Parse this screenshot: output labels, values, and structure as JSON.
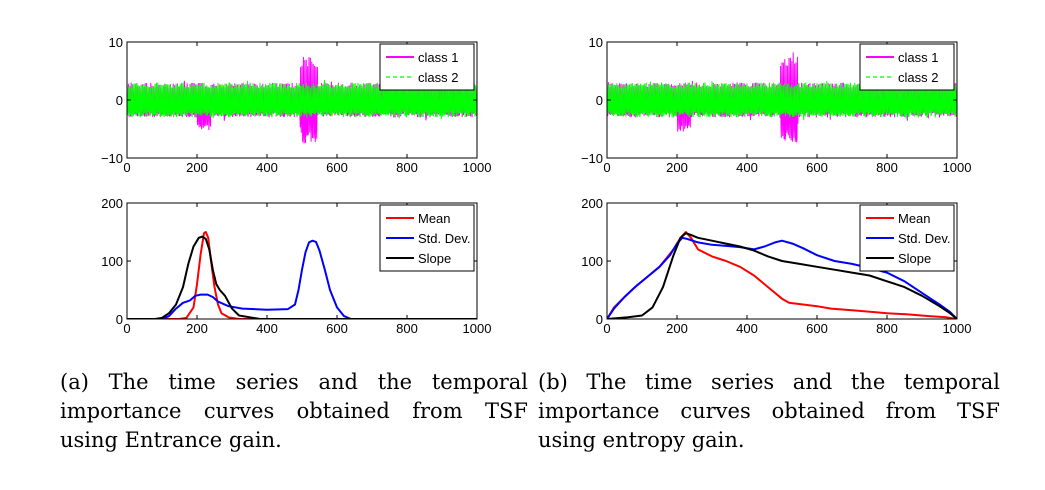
{
  "colors": {
    "class1": "#ff00ff",
    "class2": "#00ff00",
    "mean": "#ff0000",
    "std": "#0000ff",
    "slope": "#000000"
  },
  "chart_data": [
    {
      "id": "a-top",
      "type": "line",
      "xlim": [
        0,
        1000
      ],
      "ylim": [
        -10,
        10
      ],
      "xticks": [
        "0",
        "200",
        "400",
        "600",
        "800",
        "1000"
      ],
      "yticks": [
        "−10",
        "0",
        "10"
      ],
      "legend_position": "top-right",
      "series": [
        {
          "name": "class 1",
          "style": "solid",
          "color": "#ff00ff",
          "envelope": {
            "base_amplitude": 3,
            "bursts": [
              {
                "x": [
                  200,
                  240
                ],
                "amplitude": 5.5,
                "sign": "negative"
              },
              {
                "x": [
                  495,
                  545
                ],
                "amplitude": 7.5,
                "sign": "both"
              }
            ]
          }
        },
        {
          "name": "class 2",
          "style": "dashed",
          "color": "#00ff00",
          "envelope": {
            "base_amplitude": 3
          }
        }
      ]
    },
    {
      "id": "a-bottom",
      "type": "line",
      "xlim": [
        0,
        1000
      ],
      "ylim": [
        0,
        200
      ],
      "xticks": [
        "0",
        "200",
        "400",
        "600",
        "800",
        "1000"
      ],
      "yticks": [
        "0",
        "100",
        "200"
      ],
      "legend_position": "top-right",
      "series": [
        {
          "name": "Mean",
          "color": "#ff0000",
          "points": [
            [
              0,
              0
            ],
            [
              150,
              0
            ],
            [
              170,
              2
            ],
            [
              190,
              20
            ],
            [
              200,
              60
            ],
            [
              210,
              110
            ],
            [
              220,
              148
            ],
            [
              225,
              150
            ],
            [
              232,
              140
            ],
            [
              240,
              100
            ],
            [
              250,
              55
            ],
            [
              260,
              25
            ],
            [
              270,
              10
            ],
            [
              290,
              3
            ],
            [
              320,
              0
            ],
            [
              1000,
              0
            ]
          ]
        },
        {
          "name": "Std. Dev.",
          "color": "#0000ff",
          "points": [
            [
              0,
              0
            ],
            [
              100,
              0
            ],
            [
              120,
              5
            ],
            [
              140,
              18
            ],
            [
              160,
              28
            ],
            [
              180,
              32
            ],
            [
              195,
              40
            ],
            [
              210,
              42
            ],
            [
              230,
              42
            ],
            [
              245,
              38
            ],
            [
              260,
              30
            ],
            [
              290,
              22
            ],
            [
              330,
              18
            ],
            [
              400,
              16
            ],
            [
              460,
              17
            ],
            [
              480,
              25
            ],
            [
              490,
              50
            ],
            [
              500,
              85
            ],
            [
              510,
              115
            ],
            [
              520,
              132
            ],
            [
              530,
              135
            ],
            [
              540,
              133
            ],
            [
              550,
              118
            ],
            [
              565,
              85
            ],
            [
              580,
              50
            ],
            [
              600,
              20
            ],
            [
              620,
              5
            ],
            [
              640,
              0
            ],
            [
              1000,
              0
            ]
          ]
        },
        {
          "name": "Slope",
          "color": "#000000",
          "points": [
            [
              0,
              0
            ],
            [
              80,
              0
            ],
            [
              100,
              2
            ],
            [
              120,
              10
            ],
            [
              140,
              25
            ],
            [
              160,
              55
            ],
            [
              175,
              95
            ],
            [
              190,
              125
            ],
            [
              205,
              140
            ],
            [
              215,
              142
            ],
            [
              225,
              138
            ],
            [
              235,
              120
            ],
            [
              245,
              85
            ],
            [
              255,
              60
            ],
            [
              265,
              50
            ],
            [
              280,
              40
            ],
            [
              300,
              18
            ],
            [
              320,
              6
            ],
            [
              360,
              2
            ],
            [
              380,
              0
            ],
            [
              1000,
              0
            ]
          ]
        }
      ]
    },
    {
      "id": "b-top",
      "type": "line",
      "xlim": [
        0,
        1000
      ],
      "ylim": [
        -10,
        10
      ],
      "xticks": [
        "0",
        "200",
        "400",
        "600",
        "800",
        "1000"
      ],
      "yticks": [
        "−10",
        "0",
        "10"
      ],
      "legend_position": "top-right",
      "series": [
        {
          "name": "class 1",
          "style": "solid",
          "color": "#ff00ff",
          "envelope": {
            "base_amplitude": 3,
            "bursts": [
              {
                "x": [
                  200,
                  240
                ],
                "amplitude": 5.5,
                "sign": "negative"
              },
              {
                "x": [
                  495,
                  545
                ],
                "amplitude": 7.5,
                "sign": "both"
              }
            ]
          }
        },
        {
          "name": "class 2",
          "style": "dashed",
          "color": "#00ff00",
          "envelope": {
            "base_amplitude": 3
          }
        }
      ]
    },
    {
      "id": "b-bottom",
      "type": "line",
      "xlim": [
        0,
        1000
      ],
      "ylim": [
        0,
        200
      ],
      "xticks": [
        "0",
        "200",
        "400",
        "600",
        "800",
        "1000"
      ],
      "yticks": [
        "0",
        "100",
        "200"
      ],
      "legend_position": "top-right",
      "series": [
        {
          "name": "Mean",
          "color": "#ff0000",
          "points": [
            [
              0,
              0
            ],
            [
              20,
              20
            ],
            [
              50,
              38
            ],
            [
              80,
              55
            ],
            [
              110,
              70
            ],
            [
              150,
              90
            ],
            [
              190,
              120
            ],
            [
              210,
              140
            ],
            [
              225,
              150
            ],
            [
              240,
              140
            ],
            [
              260,
              120
            ],
            [
              300,
              108
            ],
            [
              340,
              100
            ],
            [
              380,
              90
            ],
            [
              420,
              75
            ],
            [
              460,
              55
            ],
            [
              500,
              35
            ],
            [
              520,
              28
            ],
            [
              560,
              25
            ],
            [
              600,
              22
            ],
            [
              640,
              18
            ],
            [
              700,
              15
            ],
            [
              760,
              12
            ],
            [
              800,
              10
            ],
            [
              860,
              8
            ],
            [
              920,
              5
            ],
            [
              970,
              3
            ],
            [
              1000,
              0
            ]
          ]
        },
        {
          "name": "Std. Dev.",
          "color": "#0000ff",
          "points": [
            [
              0,
              0
            ],
            [
              20,
              18
            ],
            [
              50,
              38
            ],
            [
              80,
              55
            ],
            [
              110,
              70
            ],
            [
              150,
              90
            ],
            [
              180,
              110
            ],
            [
              200,
              130
            ],
            [
              215,
              140
            ],
            [
              230,
              138
            ],
            [
              260,
              132
            ],
            [
              300,
              128
            ],
            [
              340,
              126
            ],
            [
              380,
              124
            ],
            [
              420,
              120
            ],
            [
              450,
              125
            ],
            [
              480,
              132
            ],
            [
              500,
              135
            ],
            [
              530,
              130
            ],
            [
              560,
              122
            ],
            [
              600,
              110
            ],
            [
              650,
              100
            ],
            [
              700,
              95
            ],
            [
              750,
              88
            ],
            [
              800,
              80
            ],
            [
              850,
              65
            ],
            [
              900,
              45
            ],
            [
              950,
              25
            ],
            [
              980,
              12
            ],
            [
              1000,
              0
            ]
          ]
        },
        {
          "name": "Slope",
          "color": "#000000",
          "points": [
            [
              0,
              0
            ],
            [
              60,
              3
            ],
            [
              100,
              6
            ],
            [
              130,
              20
            ],
            [
              160,
              55
            ],
            [
              190,
              110
            ],
            [
              210,
              140
            ],
            [
              225,
              148
            ],
            [
              240,
              145
            ],
            [
              260,
              140
            ],
            [
              300,
              135
            ],
            [
              340,
              130
            ],
            [
              380,
              125
            ],
            [
              420,
              118
            ],
            [
              460,
              108
            ],
            [
              500,
              100
            ],
            [
              550,
              95
            ],
            [
              600,
              90
            ],
            [
              650,
              85
            ],
            [
              700,
              80
            ],
            [
              750,
              75
            ],
            [
              800,
              65
            ],
            [
              850,
              55
            ],
            [
              900,
              40
            ],
            [
              950,
              22
            ],
            [
              980,
              10
            ],
            [
              1000,
              0
            ]
          ]
        }
      ]
    }
  ],
  "captions": {
    "a": "(a) The time series and the temporal importance curves obtained from TSF using Entrance gain.",
    "b": "(b) The time series and the temporal importance curves obtained from TSF using entropy gain."
  }
}
